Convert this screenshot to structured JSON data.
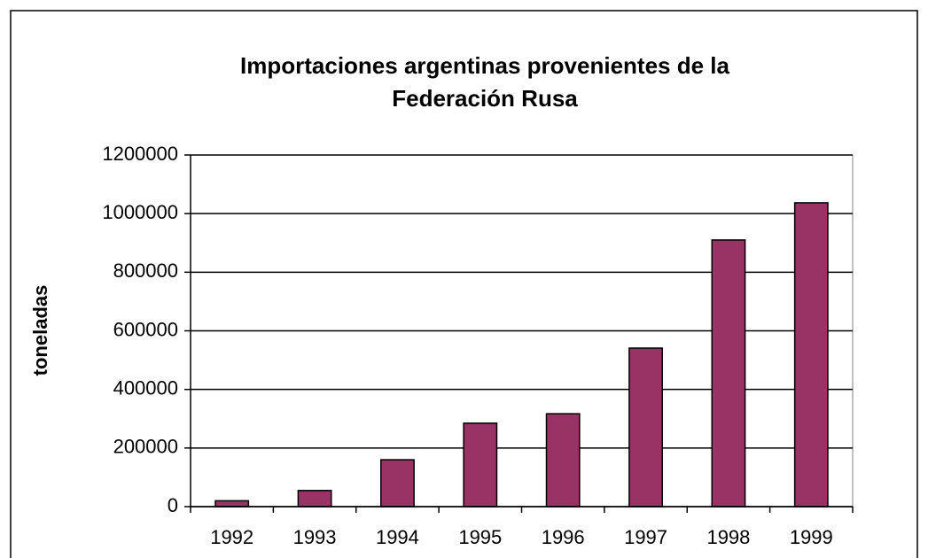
{
  "chart_data": {
    "type": "bar",
    "title": [
      "Importaciones argentinas provenientes de  la",
      "Federación Rusa"
    ],
    "y_label": "toneladas",
    "categories": [
      "1992",
      "1993",
      "1994",
      "1995",
      "1996",
      "1997",
      "1998",
      "1999"
    ],
    "values": [
      20000,
      55000,
      160000,
      285000,
      317000,
      541000,
      910000,
      1037000
    ],
    "color": "#993366",
    "ylim": [
      0,
      1200000
    ],
    "yticks": [
      0,
      200000,
      400000,
      600000,
      800000,
      1000000,
      1200000
    ],
    "grid": true
  }
}
